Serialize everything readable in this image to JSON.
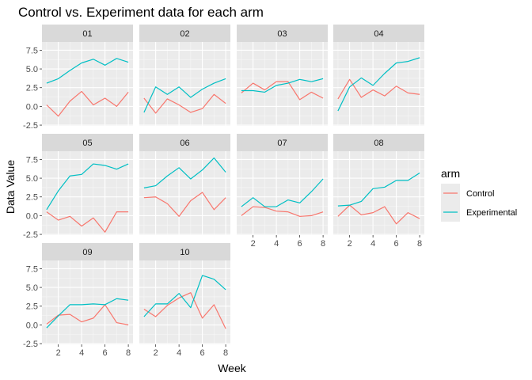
{
  "chart_data": {
    "type": "line",
    "title": "Control vs. Experiment data for each arm",
    "xlabel": "Week",
    "ylabel": "Data Value",
    "xlim": [
      0.6,
      8.4
    ],
    "ylim": [
      -2.6,
      8.6
    ],
    "x_ticks": [
      2,
      4,
      6,
      8
    ],
    "y_ticks": [
      -2.5,
      0.0,
      2.5,
      5.0,
      7.5
    ],
    "y_tick_labels": [
      "-2.5",
      "0.0",
      "2.5",
      "5.0",
      "7.5"
    ],
    "grid": true,
    "legend": {
      "title": "arm",
      "position": "right",
      "entries": [
        {
          "label": "Control",
          "color": "#F8766D"
        },
        {
          "label": "Experimental",
          "color": "#00BFC4"
        }
      ]
    },
    "x": [
      1,
      2,
      3,
      4,
      5,
      6,
      7,
      8
    ],
    "facets": [
      {
        "label": "01",
        "series": [
          {
            "name": "Control",
            "values": [
              0.2,
              -1.3,
              0.7,
              2.0,
              0.2,
              1.1,
              0.0,
              1.9
            ]
          },
          {
            "name": "Experimental",
            "values": [
              3.1,
              3.7,
              4.8,
              5.8,
              6.3,
              5.5,
              6.4,
              5.9
            ]
          }
        ]
      },
      {
        "label": "02",
        "series": [
          {
            "name": "Control",
            "values": [
              1.1,
              -0.9,
              1.0,
              0.2,
              -0.8,
              -0.3,
              1.6,
              0.4
            ]
          },
          {
            "name": "Experimental",
            "values": [
              -0.8,
              2.6,
              1.6,
              2.6,
              1.2,
              2.3,
              3.1,
              3.7
            ]
          }
        ]
      },
      {
        "label": "03",
        "series": [
          {
            "name": "Control",
            "values": [
              1.8,
              3.1,
              2.2,
              3.3,
              3.3,
              0.9,
              1.9,
              1.1
            ]
          },
          {
            "name": "Experimental",
            "values": [
              2.1,
              2.1,
              1.9,
              2.8,
              3.1,
              3.6,
              3.3,
              3.7
            ]
          }
        ]
      },
      {
        "label": "04",
        "series": [
          {
            "name": "Control",
            "values": [
              1.0,
              3.6,
              1.2,
              2.2,
              1.4,
              2.7,
              1.8,
              1.6
            ]
          },
          {
            "name": "Experimental",
            "values": [
              -0.6,
              2.6,
              3.8,
              2.8,
              4.4,
              5.8,
              6.0,
              6.5
            ]
          }
        ]
      },
      {
        "label": "05",
        "series": [
          {
            "name": "Control",
            "values": [
              0.5,
              -0.6,
              -0.1,
              -1.4,
              -0.3,
              -2.2,
              0.5,
              0.5
            ]
          },
          {
            "name": "Experimental",
            "values": [
              0.8,
              3.3,
              5.3,
              5.5,
              6.9,
              6.7,
              6.2,
              6.9
            ]
          }
        ]
      },
      {
        "label": "06",
        "series": [
          {
            "name": "Control",
            "values": [
              2.4,
              2.5,
              1.6,
              -0.1,
              2.0,
              3.1,
              0.8,
              2.4
            ]
          },
          {
            "name": "Experimental",
            "values": [
              3.7,
              4.0,
              5.3,
              6.4,
              4.9,
              6.1,
              7.7,
              5.8
            ]
          }
        ]
      },
      {
        "label": "07",
        "series": [
          {
            "name": "Control",
            "values": [
              0.0,
              1.2,
              1.1,
              0.6,
              0.5,
              -0.1,
              0.0,
              0.5
            ]
          },
          {
            "name": "Experimental",
            "values": [
              1.2,
              2.4,
              1.2,
              1.2,
              2.1,
              1.7,
              3.2,
              4.9
            ]
          }
        ]
      },
      {
        "label": "08",
        "series": [
          {
            "name": "Control",
            "values": [
              -0.1,
              1.4,
              0.1,
              0.4,
              1.2,
              -1.1,
              0.4,
              -0.4
            ]
          },
          {
            "name": "Experimental",
            "values": [
              1.3,
              1.4,
              1.9,
              3.6,
              3.8,
              4.7,
              4.7,
              5.7
            ]
          }
        ]
      },
      {
        "label": "09",
        "series": [
          {
            "name": "Control",
            "values": [
              0.1,
              1.3,
              1.4,
              0.4,
              0.9,
              2.7,
              0.3,
              0.0
            ]
          },
          {
            "name": "Experimental",
            "values": [
              -0.4,
              1.2,
              2.7,
              2.7,
              2.8,
              2.7,
              3.5,
              3.3
            ]
          }
        ]
      },
      {
        "label": "10",
        "series": [
          {
            "name": "Control",
            "values": [
              2.1,
              1.1,
              2.6,
              3.6,
              4.3,
              0.9,
              2.7,
              -0.5
            ]
          },
          {
            "name": "Experimental",
            "values": [
              1.1,
              2.8,
              2.8,
              4.2,
              2.3,
              6.6,
              6.1,
              4.7
            ]
          }
        ]
      }
    ]
  }
}
